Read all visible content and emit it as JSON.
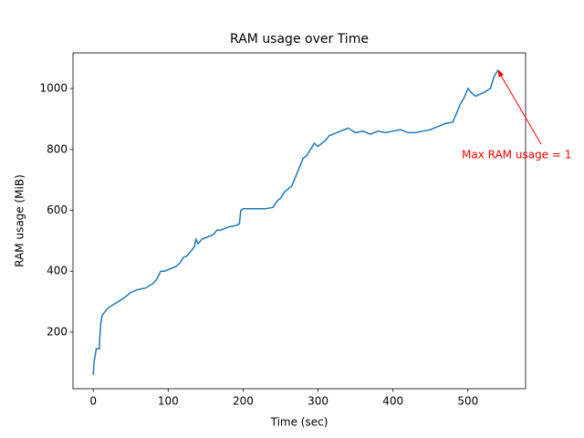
{
  "chart_data": {
    "type": "line",
    "title": "RAM usage over Time",
    "x_label": "Time (sec)",
    "y_label": "RAM usage (MiB)",
    "annotation": "Max RAM usage = 1",
    "annotation_color": "#ff0000",
    "x": [
      0,
      1,
      2,
      4,
      8,
      10,
      12,
      15,
      20,
      30,
      40,
      50,
      60,
      70,
      80,
      85,
      90,
      95,
      100,
      110,
      115,
      120,
      125,
      130,
      135,
      137,
      140,
      145,
      150,
      160,
      165,
      170,
      180,
      190,
      195,
      197,
      200,
      210,
      220,
      230,
      240,
      245,
      250,
      255,
      260,
      265,
      270,
      275,
      280,
      285,
      290,
      295,
      300,
      305,
      310,
      315,
      320,
      330,
      340,
      350,
      360,
      370,
      380,
      390,
      400,
      410,
      420,
      430,
      440,
      450,
      460,
      470,
      480,
      485,
      490,
      495,
      500,
      505,
      510,
      520,
      530,
      535,
      540,
      545
    ],
    "series": [
      {
        "name": "RAM usage",
        "color": "#1f77b4",
        "values": [
          60,
          100,
          115,
          145,
          145,
          230,
          255,
          265,
          280,
          295,
          310,
          330,
          340,
          345,
          360,
          375,
          400,
          400,
          405,
          415,
          425,
          445,
          450,
          465,
          480,
          505,
          490,
          505,
          510,
          520,
          535,
          535,
          545,
          550,
          555,
          600,
          605,
          605,
          605,
          605,
          610,
          630,
          640,
          660,
          670,
          680,
          710,
          740,
          770,
          780,
          800,
          820,
          810,
          820,
          830,
          845,
          850,
          860,
          870,
          855,
          860,
          850,
          860,
          855,
          860,
          865,
          855,
          855,
          860,
          865,
          875,
          885,
          890,
          920,
          950,
          970,
          1000,
          985,
          975,
          985,
          1000,
          1040,
          1060,
          1050
        ]
      }
    ],
    "xlim": [
      -27,
      577
    ],
    "ylim": [
      14,
      1117
    ],
    "xticks": [
      0,
      100,
      200,
      300,
      400,
      500
    ],
    "yticks": [
      200,
      400,
      600,
      800,
      1000
    ]
  }
}
